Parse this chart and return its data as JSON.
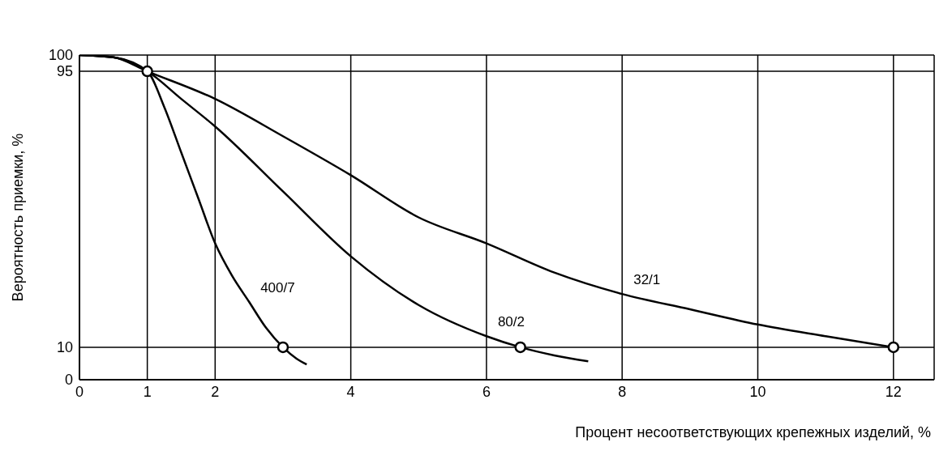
{
  "chart_data": {
    "type": "line",
    "xlabel": "Процент несоответствующих крепежных изделий, %",
    "ylabel": "Вероятность приемки, %",
    "xlim": [
      0,
      12.6
    ],
    "xticks": [
      0,
      1,
      2,
      4,
      6,
      8,
      10,
      12
    ],
    "ylim": [
      0,
      100
    ],
    "yticks": [
      0,
      10,
      95,
      100
    ],
    "grid": true,
    "legend": false,
    "marker": "none",
    "line_style": "solid",
    "series": [
      {
        "name": "400/7",
        "color": "#000000",
        "x": [
          0,
          0.5,
          1,
          1.25,
          1.5,
          1.75,
          2,
          2.25,
          2.5,
          2.75,
          3,
          3.2,
          3.35
        ],
        "values": [
          100,
          99.3,
          95,
          84,
          70,
          56,
          42,
          32,
          24,
          16,
          10,
          6.5,
          4.7
        ]
      },
      {
        "name": "80/2",
        "color": "#000000",
        "x": [
          0,
          0.5,
          1,
          1.5,
          2,
          3,
          4,
          5,
          6,
          6.5,
          7,
          7.5
        ],
        "values": [
          100,
          99.3,
          95,
          86.5,
          78,
          58,
          38,
          23,
          13.4,
          10,
          7.5,
          5.7
        ]
      },
      {
        "name": "32/1",
        "color": "#000000",
        "x": [
          0,
          0.5,
          1,
          2,
          3,
          4,
          5,
          6,
          7,
          8,
          9,
          10,
          11,
          12
        ],
        "values": [
          100,
          99.3,
          95,
          86.5,
          75,
          63,
          50,
          42,
          33,
          26.4,
          21.7,
          17,
          13.4,
          10
        ]
      },
      {
        "type": "scatter",
        "color": "#000000",
        "marker": "circle",
        "x": [
          1,
          3,
          6.5,
          12
        ],
        "values": [
          95,
          10,
          10,
          10
        ]
      }
    ]
  }
}
